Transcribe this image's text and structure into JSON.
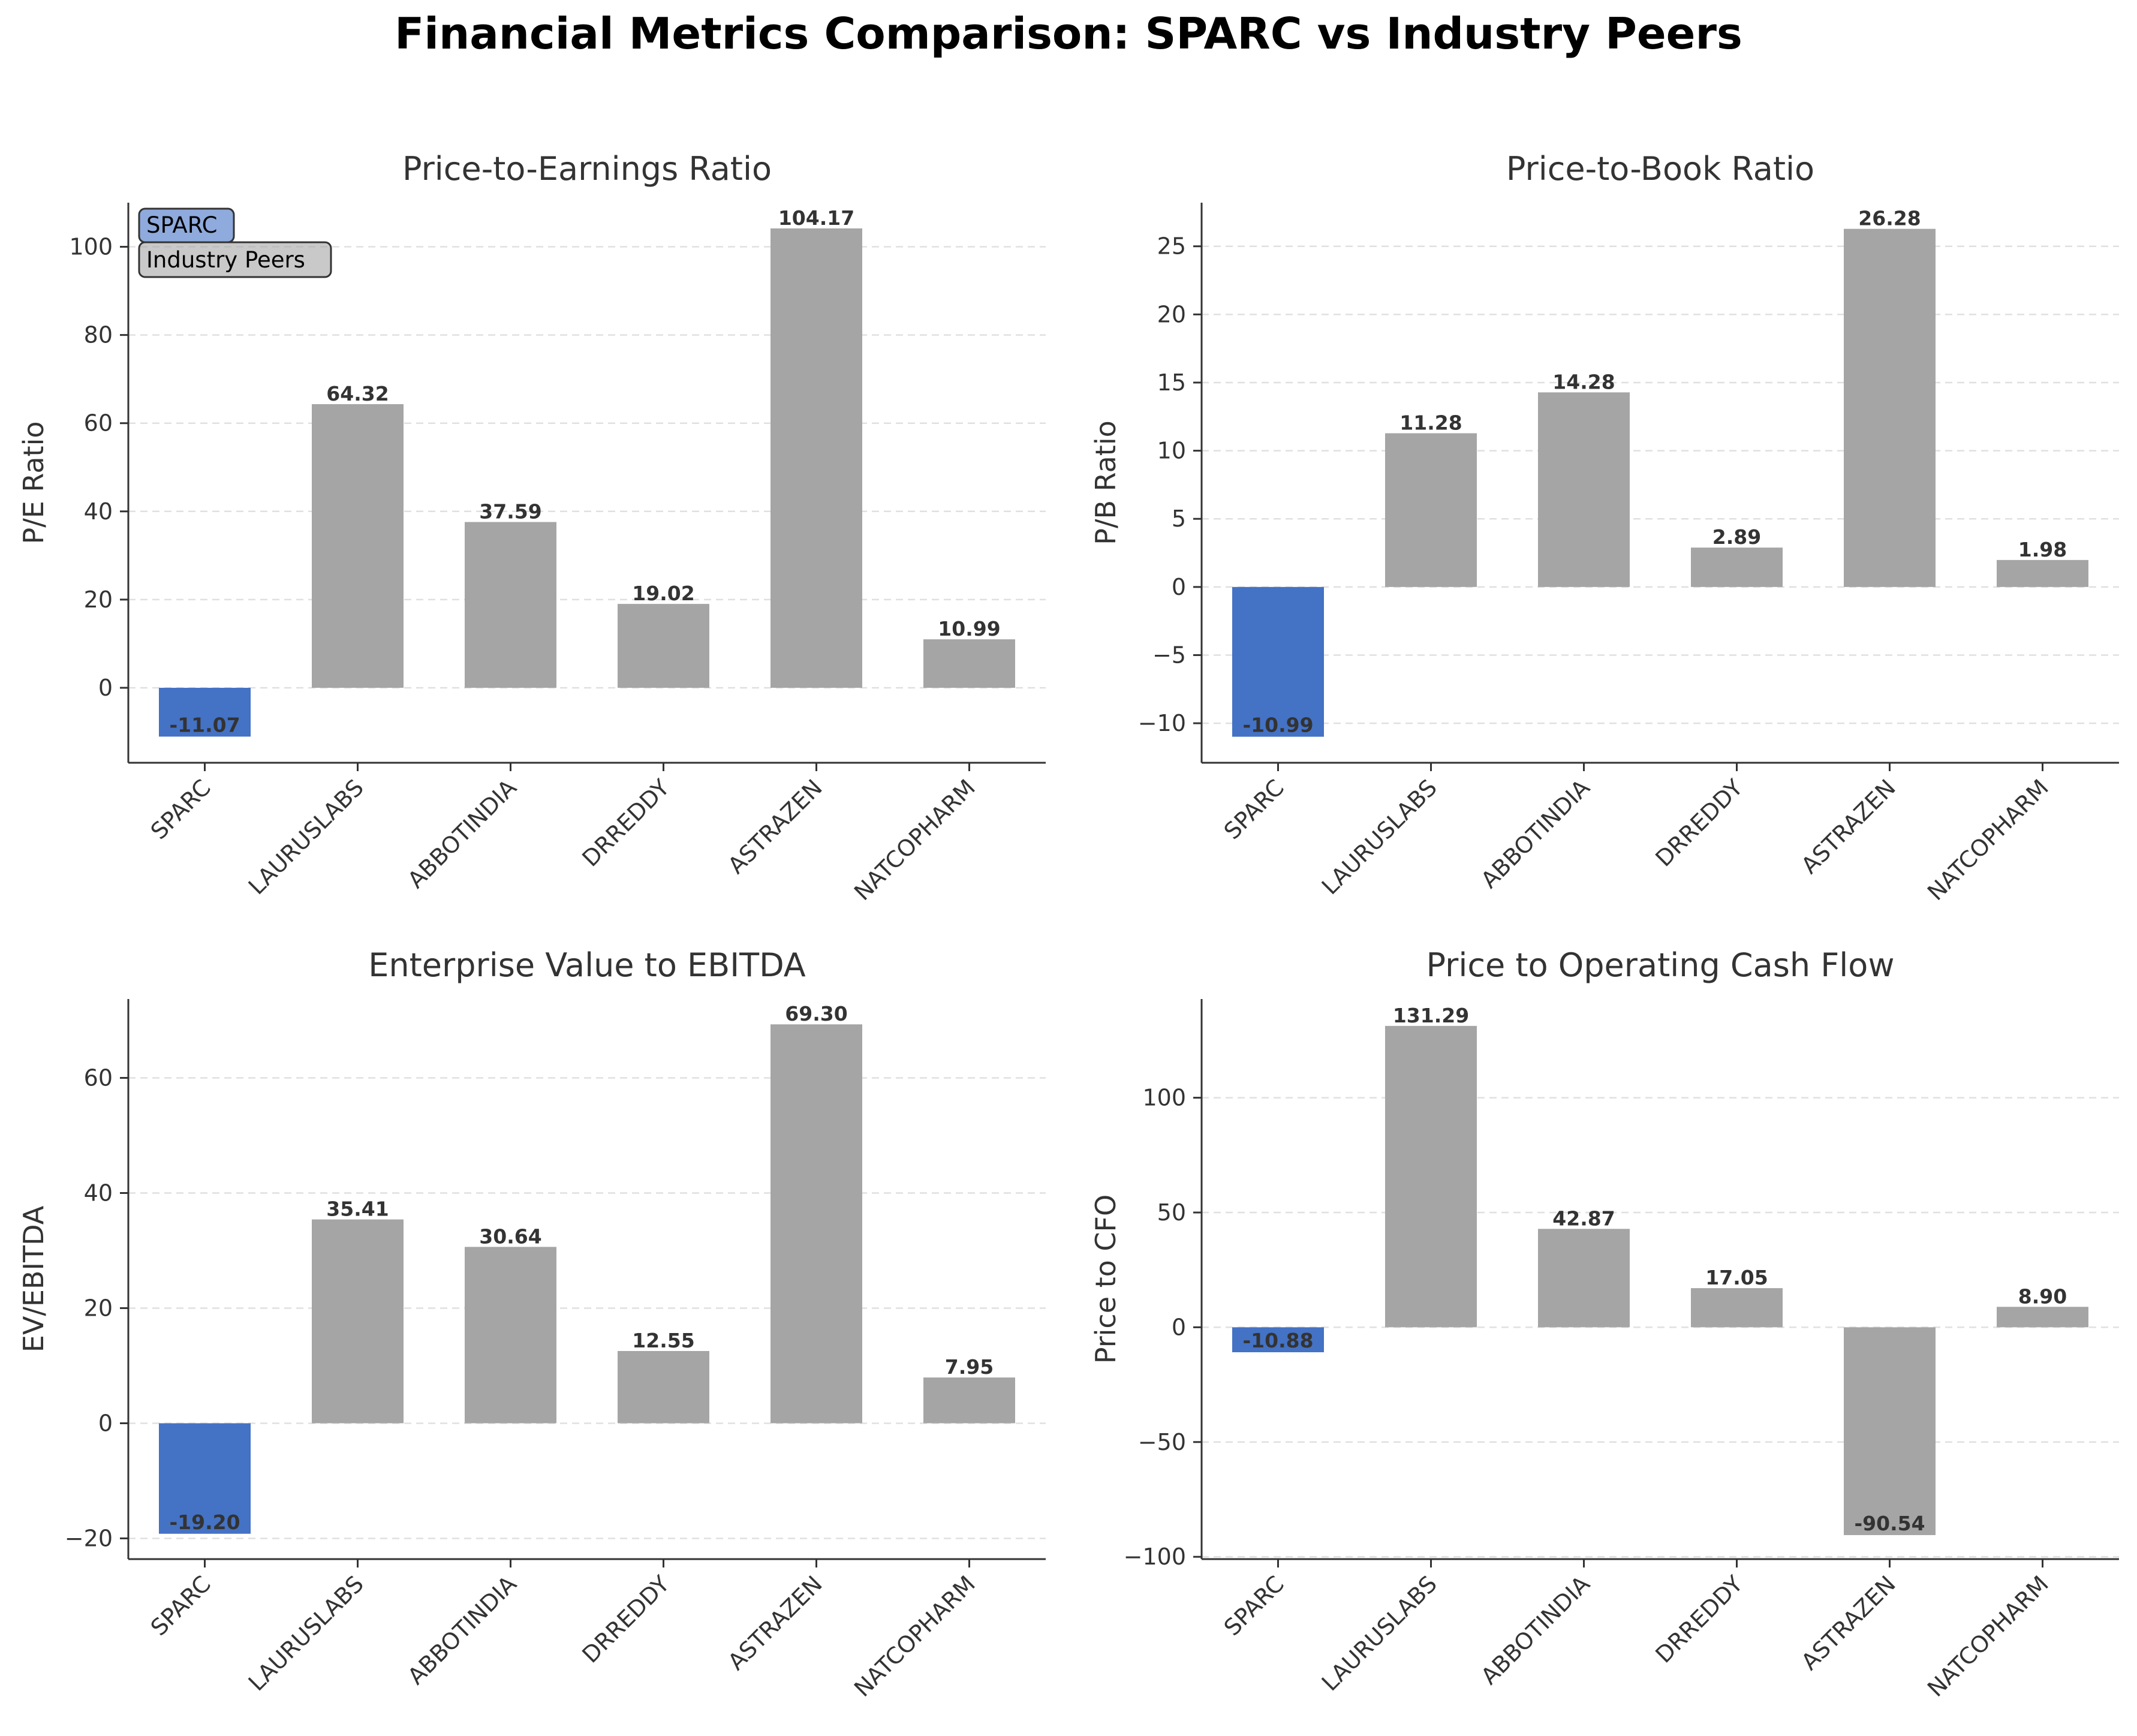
{
  "title": "Financial Metrics Comparison: SPARC vs Industry Peers",
  "colors": {
    "highlight": "#4472c4",
    "peer": "#a5a5a5",
    "axis": "#333333",
    "grid": "#e0e0e0",
    "text": "#333333"
  },
  "legend": {
    "placement": "top-left",
    "items": [
      "SPARC",
      "Industry Peers"
    ]
  },
  "chart_data": [
    {
      "type": "bar",
      "title": "Price-to-Earnings Ratio",
      "xlabel": "",
      "ylabel": "P/E Ratio",
      "categories": [
        "SPARC",
        "LAURUSLABS",
        "ABBOTINDIA",
        "DRREDDY",
        "ASTRAZEN",
        "NATCOPHARM"
      ],
      "values": [
        -11.07,
        64.32,
        37.59,
        19.02,
        104.17,
        10.99
      ],
      "value_labels": [
        "-11.07",
        "64.32",
        "37.59",
        "19.02",
        "104.17",
        "10.99"
      ],
      "ylim": [
        -17,
        110
      ],
      "yticks": [
        0,
        20,
        40,
        60,
        80,
        100
      ],
      "ytick_labels": [
        "0",
        "20",
        "40",
        "60",
        "80",
        "100"
      ],
      "grid": true,
      "highlight_index": 0
    },
    {
      "type": "bar",
      "title": "Price-to-Book Ratio",
      "xlabel": "",
      "ylabel": "P/B Ratio",
      "categories": [
        "SPARC",
        "LAURUSLABS",
        "ABBOTINDIA",
        "DRREDDY",
        "ASTRAZEN",
        "NATCOPHARM"
      ],
      "values": [
        -10.99,
        11.28,
        14.28,
        2.89,
        26.28,
        1.98
      ],
      "value_labels": [
        "-10.99",
        "11.28",
        "14.28",
        "2.89",
        "26.28",
        "1.98"
      ],
      "ylim": [
        -12.9,
        28.2
      ],
      "yticks": [
        -10,
        -5,
        0,
        5,
        10,
        15,
        20,
        25
      ],
      "ytick_labels": [
        "−10",
        "−5",
        "0",
        "5",
        "10",
        "15",
        "20",
        "25"
      ],
      "grid": true,
      "highlight_index": 0
    },
    {
      "type": "bar",
      "title": "Enterprise Value to EBITDA",
      "xlabel": "",
      "ylabel": "EV/EBITDA",
      "categories": [
        "SPARC",
        "LAURUSLABS",
        "ABBOTINDIA",
        "DRREDDY",
        "ASTRAZEN",
        "NATCOPHARM"
      ],
      "values": [
        -19.2,
        35.41,
        30.64,
        12.55,
        69.3,
        7.95
      ],
      "value_labels": [
        "-19.20",
        "35.41",
        "30.64",
        "12.55",
        "69.30",
        "7.95"
      ],
      "ylim": [
        -23.6,
        73.7
      ],
      "yticks": [
        -20,
        0,
        20,
        40,
        60
      ],
      "ytick_labels": [
        "−20",
        "0",
        "20",
        "40",
        "60"
      ],
      "grid": true,
      "highlight_index": 0
    },
    {
      "type": "bar",
      "title": "Price to Operating Cash Flow",
      "xlabel": "",
      "ylabel": "Price to CFO",
      "categories": [
        "SPARC",
        "LAURUSLABS",
        "ABBOTINDIA",
        "DRREDDY",
        "ASTRAZEN",
        "NATCOPHARM"
      ],
      "values": [
        -10.88,
        131.29,
        42.87,
        17.05,
        -90.54,
        8.9
      ],
      "value_labels": [
        "-10.88",
        "131.29",
        "42.87",
        "17.05",
        "-90.54",
        "8.90"
      ],
      "ylim": [
        -101,
        143
      ],
      "yticks": [
        -100,
        -50,
        0,
        50,
        100
      ],
      "ytick_labels": [
        "−100",
        "−50",
        "0",
        "50",
        "100"
      ],
      "grid": true,
      "highlight_index": 0
    }
  ]
}
